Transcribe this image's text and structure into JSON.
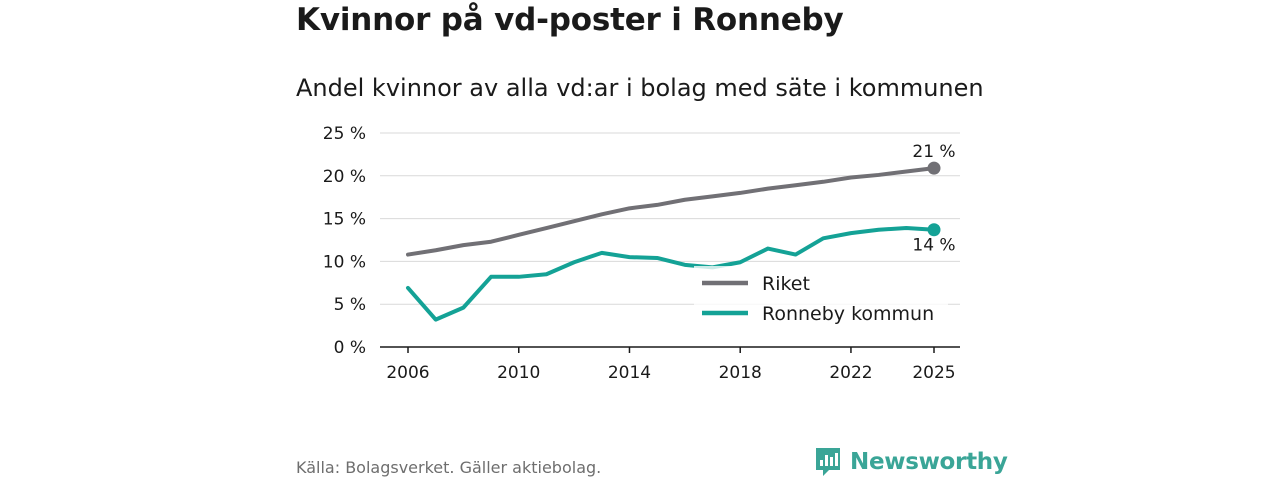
{
  "title": "Kvinnor på vd-poster i Ronneby",
  "subtitle": "Andel kvinnor av alla vd:ar i bolag med säte i kommunen",
  "source": "Källa: Bolagsverket. Gäller aktiebolag.",
  "brand": {
    "name": "Newsworthy",
    "color": "#3aa597"
  },
  "chart_data": {
    "type": "line",
    "x": [
      2006,
      2007,
      2008,
      2009,
      2010,
      2011,
      2012,
      2013,
      2014,
      2015,
      2016,
      2017,
      2018,
      2019,
      2020,
      2021,
      2022,
      2023,
      2024,
      2025
    ],
    "series": [
      {
        "name": "Riket",
        "color": "#717075",
        "values": [
          10.8,
          11.3,
          11.9,
          12.3,
          13.1,
          13.9,
          14.7,
          15.5,
          16.2,
          16.6,
          17.2,
          17.6,
          18.0,
          18.5,
          18.9,
          19.3,
          19.8,
          20.1,
          20.5,
          20.9
        ],
        "end_label": "21 %"
      },
      {
        "name": "Ronneby kommun",
        "color": "#14a296",
        "values": [
          6.9,
          3.2,
          4.6,
          8.2,
          8.2,
          8.5,
          9.9,
          11.0,
          10.5,
          10.4,
          9.6,
          9.3,
          9.9,
          11.5,
          10.8,
          12.7,
          13.3,
          13.7,
          13.9,
          13.7
        ],
        "end_label": "14 %"
      }
    ],
    "ylim": [
      0,
      25
    ],
    "yticks": [
      0,
      5,
      10,
      15,
      20,
      25
    ],
    "ytick_labels": [
      "0 %",
      "5 %",
      "10 %",
      "15 %",
      "20 %",
      "25 %"
    ],
    "xticks": [
      2006,
      2010,
      2014,
      2018,
      2022,
      2025
    ],
    "xtick_labels": [
      "2006",
      "2010",
      "2014",
      "2018",
      "2022",
      "2025"
    ],
    "xlabel": "",
    "ylabel": "",
    "grid": true,
    "legend_position": "bottom-right"
  }
}
